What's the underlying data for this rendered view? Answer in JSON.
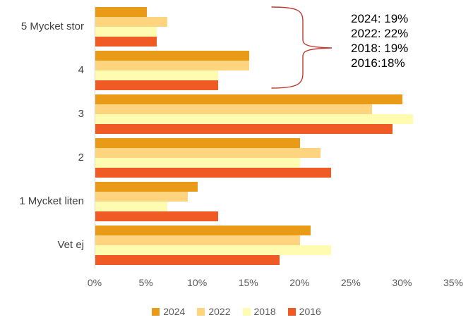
{
  "chart_data": {
    "type": "bar",
    "orientation": "horizontal",
    "title": "",
    "categories": [
      "5 Mycket stor",
      "4",
      "3",
      "2",
      "1 Mycket liten",
      "Vet ej"
    ],
    "series": [
      {
        "name": "2024",
        "color": "#E99B17",
        "values": [
          5,
          15,
          30,
          20,
          10,
          21
        ]
      },
      {
        "name": "2022",
        "color": "#FFD47E",
        "values": [
          7,
          15,
          27,
          22,
          9,
          20
        ]
      },
      {
        "name": "2018",
        "color": "#FFFBB0",
        "values": [
          6,
          12,
          31,
          20,
          7,
          23
        ]
      },
      {
        "name": "2016",
        "color": "#F05A25",
        "values": [
          6,
          12,
          29,
          23,
          12,
          18
        ]
      }
    ],
    "xlim": [
      0,
      35
    ],
    "x_tick_labels": [
      "0%",
      "5%",
      "10%",
      "15%",
      "20%",
      "25%",
      "30%",
      "35%"
    ],
    "x_tick_values": [
      0,
      5,
      10,
      15,
      20,
      25,
      30,
      35
    ],
    "grid": false,
    "legend_position": "bottom",
    "annotation": {
      "lines": [
        "2024: 19%",
        "2022: 22%",
        "2018: 19%",
        "2016:18%"
      ],
      "brace_color": "#C03A34",
      "text_color": "#000000"
    }
  },
  "style": {
    "background": "#FFFFFF",
    "axis_line_color": "#D9D9D9",
    "tick_label_color": "#595959",
    "category_label_color": "#404040",
    "legend_label_color": "#595959"
  }
}
